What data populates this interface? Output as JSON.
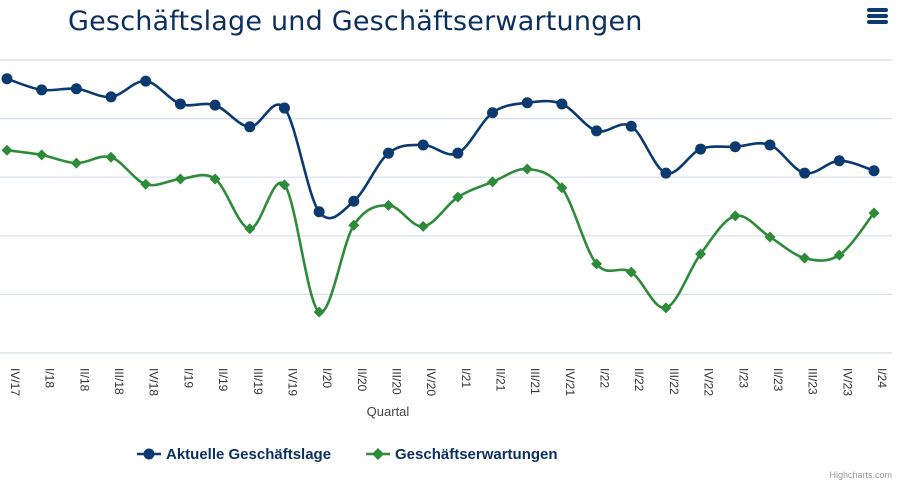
{
  "chart_data": {
    "type": "line",
    "title": "Geschäftslage und Geschäftserwartungen",
    "xlabel": "Quartal",
    "ylabel": "",
    "y_unit_note": "no y-axis tick labels visible; values in gridline units (0 = lowest gridline, 5 = top gridline)",
    "ylim": [
      0,
      5
    ],
    "grid": true,
    "smooth": true,
    "legend_position": "bottom-center",
    "categories": [
      "IV/17",
      "I/18",
      "II/18",
      "III/18",
      "IV/18",
      "I/19",
      "II/19",
      "III/19",
      "IV/19",
      "I/20",
      "II/20",
      "III/20",
      "IV/20",
      "I/21",
      "II/21",
      "III/21",
      "IV/21",
      "I/22",
      "II/22",
      "III/22",
      "IV/22",
      "I/23",
      "II/23",
      "III/23",
      "IV/23",
      "I/24"
    ],
    "series": [
      {
        "name": "Aktuelle Geschäftslage",
        "color": "#0b3a70",
        "marker": "circle",
        "values": [
          4.68,
          4.49,
          4.51,
          4.37,
          4.64,
          4.25,
          4.23,
          3.86,
          4.18,
          2.41,
          2.59,
          3.41,
          3.55,
          3.41,
          4.1,
          4.27,
          4.25,
          3.79,
          3.87,
          3.07,
          3.48,
          3.52,
          3.55,
          3.07,
          3.28,
          3.11
        ]
      },
      {
        "name": "Geschäftserwartungen",
        "color": "#2e8b3a",
        "marker": "diamond",
        "values": [
          3.46,
          3.38,
          3.24,
          3.34,
          2.88,
          2.97,
          2.97,
          2.12,
          2.87,
          0.7,
          2.18,
          2.52,
          2.16,
          2.66,
          2.92,
          3.14,
          2.82,
          1.52,
          1.38,
          0.77,
          1.69,
          2.34,
          1.98,
          1.62,
          1.67,
          2.39
        ]
      }
    ]
  },
  "menu": {
    "icon": "hamburger-menu-icon"
  },
  "credits": "Highcharts.com"
}
